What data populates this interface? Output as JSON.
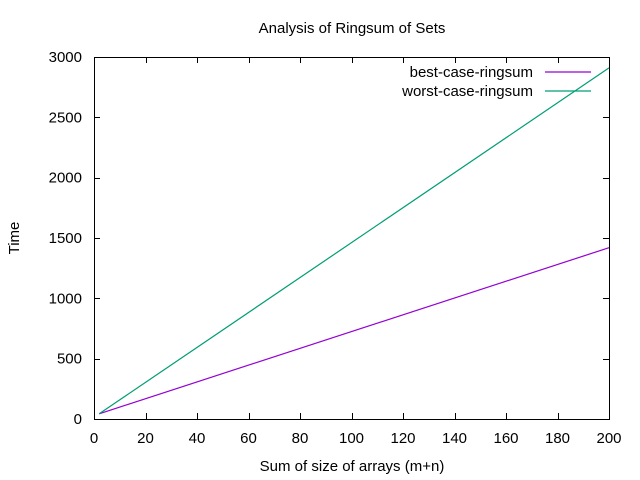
{
  "chart_data": {
    "type": "line",
    "title": "Analysis of Ringsum of Sets",
    "xlabel": "Sum of size of arrays (m+n)",
    "ylabel": "Time",
    "xlim": [
      0,
      200
    ],
    "ylim": [
      0,
      3000
    ],
    "xticks": [
      0,
      20,
      40,
      60,
      80,
      100,
      120,
      140,
      160,
      180,
      200
    ],
    "yticks": [
      0,
      500,
      1000,
      1500,
      2000,
      2500,
      3000
    ],
    "grid": false,
    "legend_position": "top-right",
    "series": [
      {
        "name": "best-case-ringsum",
        "color": "#9400d3",
        "x": [
          2,
          200
        ],
        "y": [
          43,
          1420
        ]
      },
      {
        "name": "worst-case-ringsum",
        "color": "#009e73",
        "x": [
          2,
          200
        ],
        "y": [
          43,
          2910
        ]
      }
    ]
  }
}
